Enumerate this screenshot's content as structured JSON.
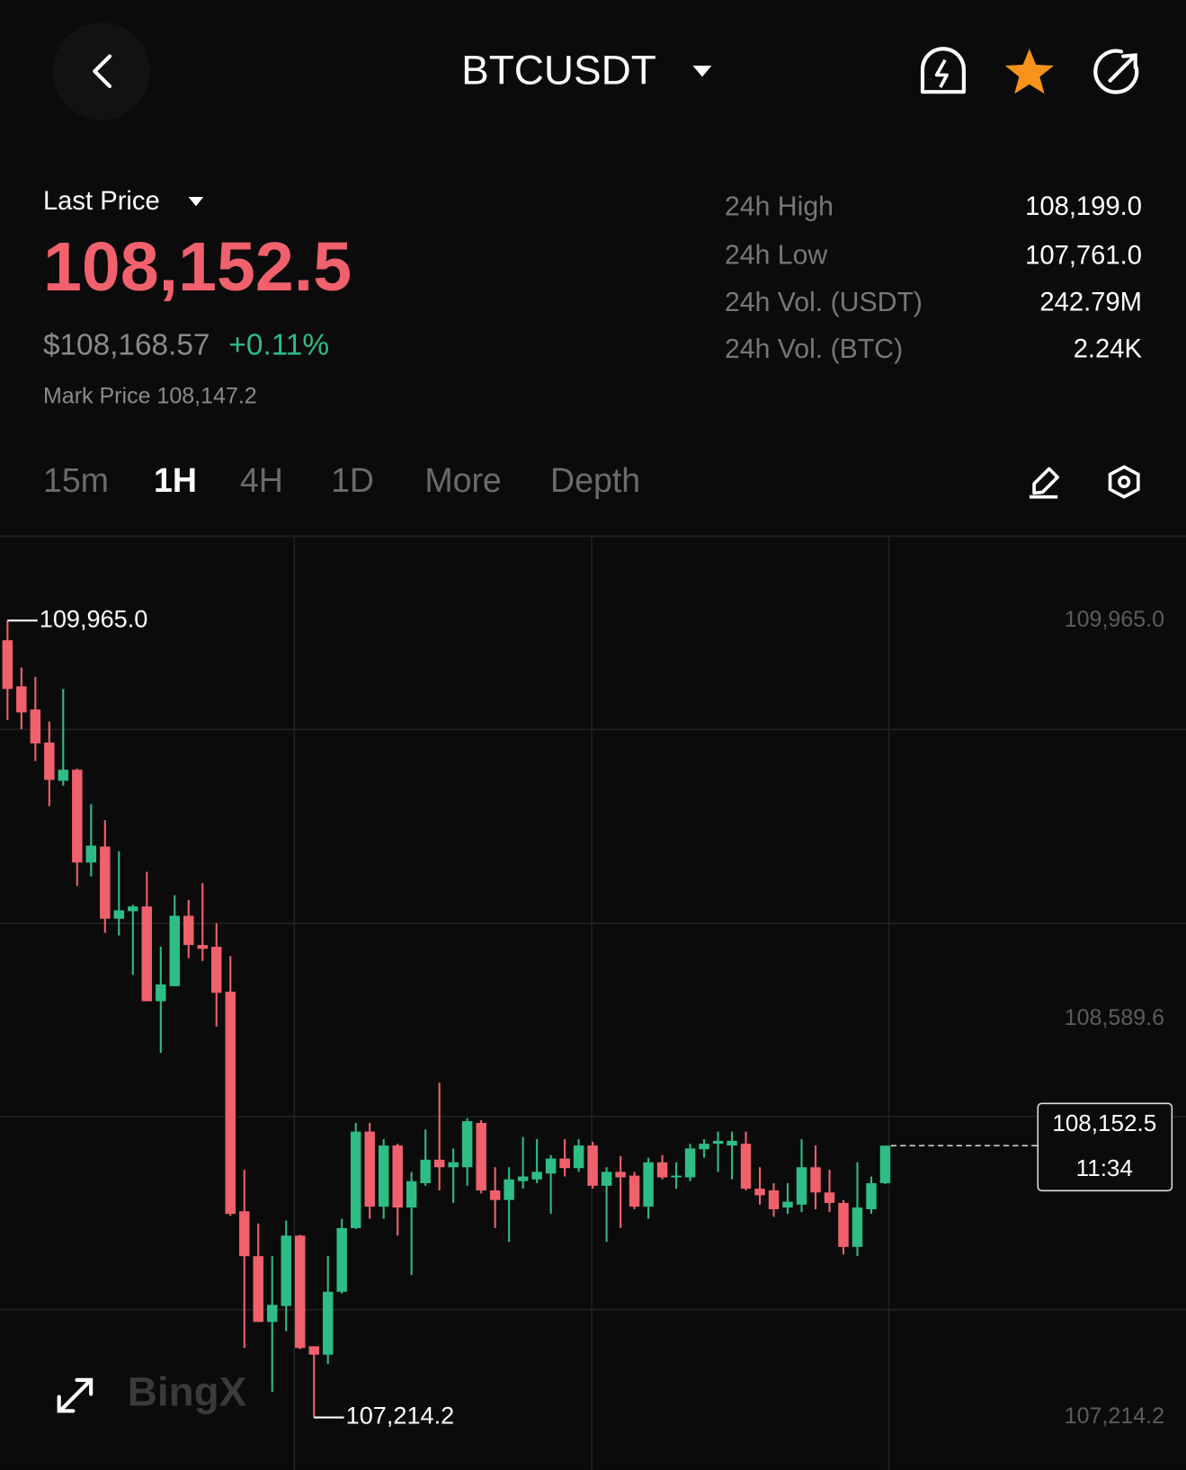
{
  "header": {
    "title": "BTCUSDT"
  },
  "price": {
    "label": "Last Price",
    "last": "108,152.5",
    "usd": "$108,168.57",
    "change": "+0.11%",
    "mark": "Mark Price 108,147.2"
  },
  "stats": [
    {
      "label": "24h High",
      "value": "108,199.0"
    },
    {
      "label": "24h Low",
      "value": "107,761.0"
    },
    {
      "label": "24h Vol. (USDT)",
      "value": "242.79M"
    },
    {
      "label": "24h Vol. (BTC)",
      "value": "2.24K"
    }
  ],
  "tabs": [
    "15m",
    "1H",
    "4H",
    "1D",
    "More",
    "Depth"
  ],
  "active_tab": 1,
  "watermark": "BingX",
  "chart_data": {
    "type": "candlestick",
    "up_color": "#2ebd85",
    "down_color": "#f0616d",
    "ylim": [
      107033,
      110256
    ],
    "yticks": [
      {
        "value": 109965,
        "label": "109,965.0"
      },
      {
        "value": 108589.6,
        "label": "108,589.6"
      },
      {
        "value": 107214.2,
        "label": "107,214.2"
      }
    ],
    "high_marker": {
      "value": 109965,
      "label": "109,965.0"
    },
    "low_marker": {
      "value": 107214.2,
      "label": "107,214.2"
    },
    "last_price": {
      "value": 108152.5,
      "label": "108,152.5",
      "time": "11:34"
    },
    "open": [
      109897,
      109738,
      109658,
      109544,
      109412,
      109450,
      109130,
      109185,
      108936,
      108962,
      108978,
      108651,
      108703,
      108946,
      108845,
      108839,
      108684,
      107926,
      107771,
      107544,
      107599,
      107842,
      107460,
      107431,
      107648,
      107868,
      108201,
      107942,
      108153,
      107939,
      108023,
      108104,
      108078,
      108078,
      108231,
      107998,
      107965,
      108030,
      108036,
      108056,
      108108,
      108075,
      108153,
      108014,
      108062,
      108049,
      107942,
      108095,
      108043,
      108043,
      108140,
      108159,
      108153,
      108159,
      108004,
      107998,
      107939,
      107949,
      108078,
      107991,
      107955,
      107803,
      107933,
      108023
    ],
    "high": [
      109965,
      109803,
      109771,
      109616,
      109729,
      109454,
      109331,
      109276,
      109169,
      108984,
      109098,
      108839,
      109017,
      109001,
      109059,
      108920,
      108807,
      108069,
      107884,
      107771,
      107894,
      107845,
      107460,
      107771,
      107900,
      108231,
      108231,
      108175,
      108159,
      108062,
      108208,
      108370,
      108143,
      108247,
      108240,
      108078,
      108078,
      108182,
      108175,
      108120,
      108175,
      108175,
      108166,
      108078,
      108117,
      108062,
      108111,
      108120,
      108095,
      108159,
      108175,
      108201,
      108201,
      108201,
      108078,
      108023,
      108023,
      108175,
      108153,
      108069,
      107965,
      108095,
      108046,
      108152.5
    ],
    "low": [
      109622,
      109590,
      109480,
      109324,
      109395,
      109049,
      109082,
      108887,
      108878,
      108742,
      108651,
      108473,
      108703,
      108800,
      108790,
      108564,
      107910,
      107454,
      107544,
      107302,
      107512,
      107450,
      107214.2,
      107399,
      107642,
      107865,
      107900,
      107900,
      107842,
      107706,
      108014,
      107998,
      107955,
      108014,
      107988,
      107868,
      107820,
      108004,
      108023,
      107917,
      108046,
      108062,
      108004,
      107820,
      107868,
      107933,
      107900,
      108036,
      108004,
      108030,
      108111,
      108062,
      108036,
      107998,
      107949,
      107907,
      107917,
      107923,
      107933,
      107923,
      107777,
      107771,
      107917,
      108020
    ],
    "close": [
      109729,
      109648,
      109541,
      109415,
      109450,
      109130,
      109188,
      108936,
      108965,
      108978,
      108651,
      108709,
      108946,
      108845,
      108832,
      108680,
      107917,
      107771,
      107544,
      107603,
      107842,
      107454,
      107431,
      107648,
      107868,
      108201,
      107942,
      108153,
      107939,
      108030,
      108104,
      108078,
      108095,
      108237,
      107998,
      107965,
      108036,
      108046,
      108062,
      108108,
      108075,
      108153,
      108014,
      108062,
      108043,
      107942,
      108095,
      108043,
      108049,
      108143,
      108159,
      108169,
      108169,
      108004,
      107981,
      107933,
      107959,
      108078,
      107991,
      107955,
      107803,
      107939,
      108023,
      108152.5
    ]
  }
}
